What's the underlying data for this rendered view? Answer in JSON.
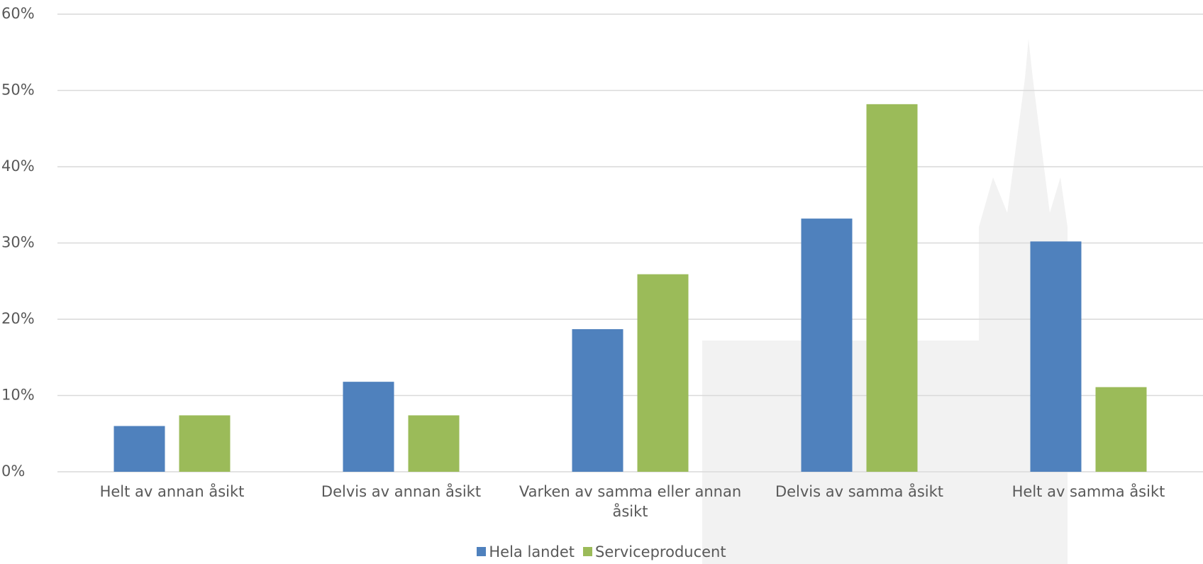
{
  "chart_data": {
    "type": "bar",
    "categories": [
      "Helt av annan åsikt",
      "Delvis av annan åsikt",
      "Varken av samma eller annan åsikt",
      "Delvis av samma åsikt",
      "Helt av samma åsikt"
    ],
    "series": [
      {
        "name": "Hela landet",
        "color": "#4f81bd",
        "values": [
          6.0,
          11.8,
          18.7,
          33.2,
          30.2
        ]
      },
      {
        "name": "Serviceproducent",
        "color": "#9bbb59",
        "values": [
          7.4,
          7.4,
          25.9,
          48.2,
          11.1
        ]
      }
    ],
    "ylim": [
      0,
      60
    ],
    "yticks": [
      {
        "value": 0,
        "label": "0%"
      },
      {
        "value": 10,
        "label": "10%"
      },
      {
        "value": 20,
        "label": "20%"
      },
      {
        "value": 30,
        "label": "30%"
      },
      {
        "value": 40,
        "label": "40%"
      },
      {
        "value": 50,
        "label": "50%"
      },
      {
        "value": 60,
        "label": "60%"
      }
    ],
    "grid": true,
    "legend": "bottom"
  }
}
